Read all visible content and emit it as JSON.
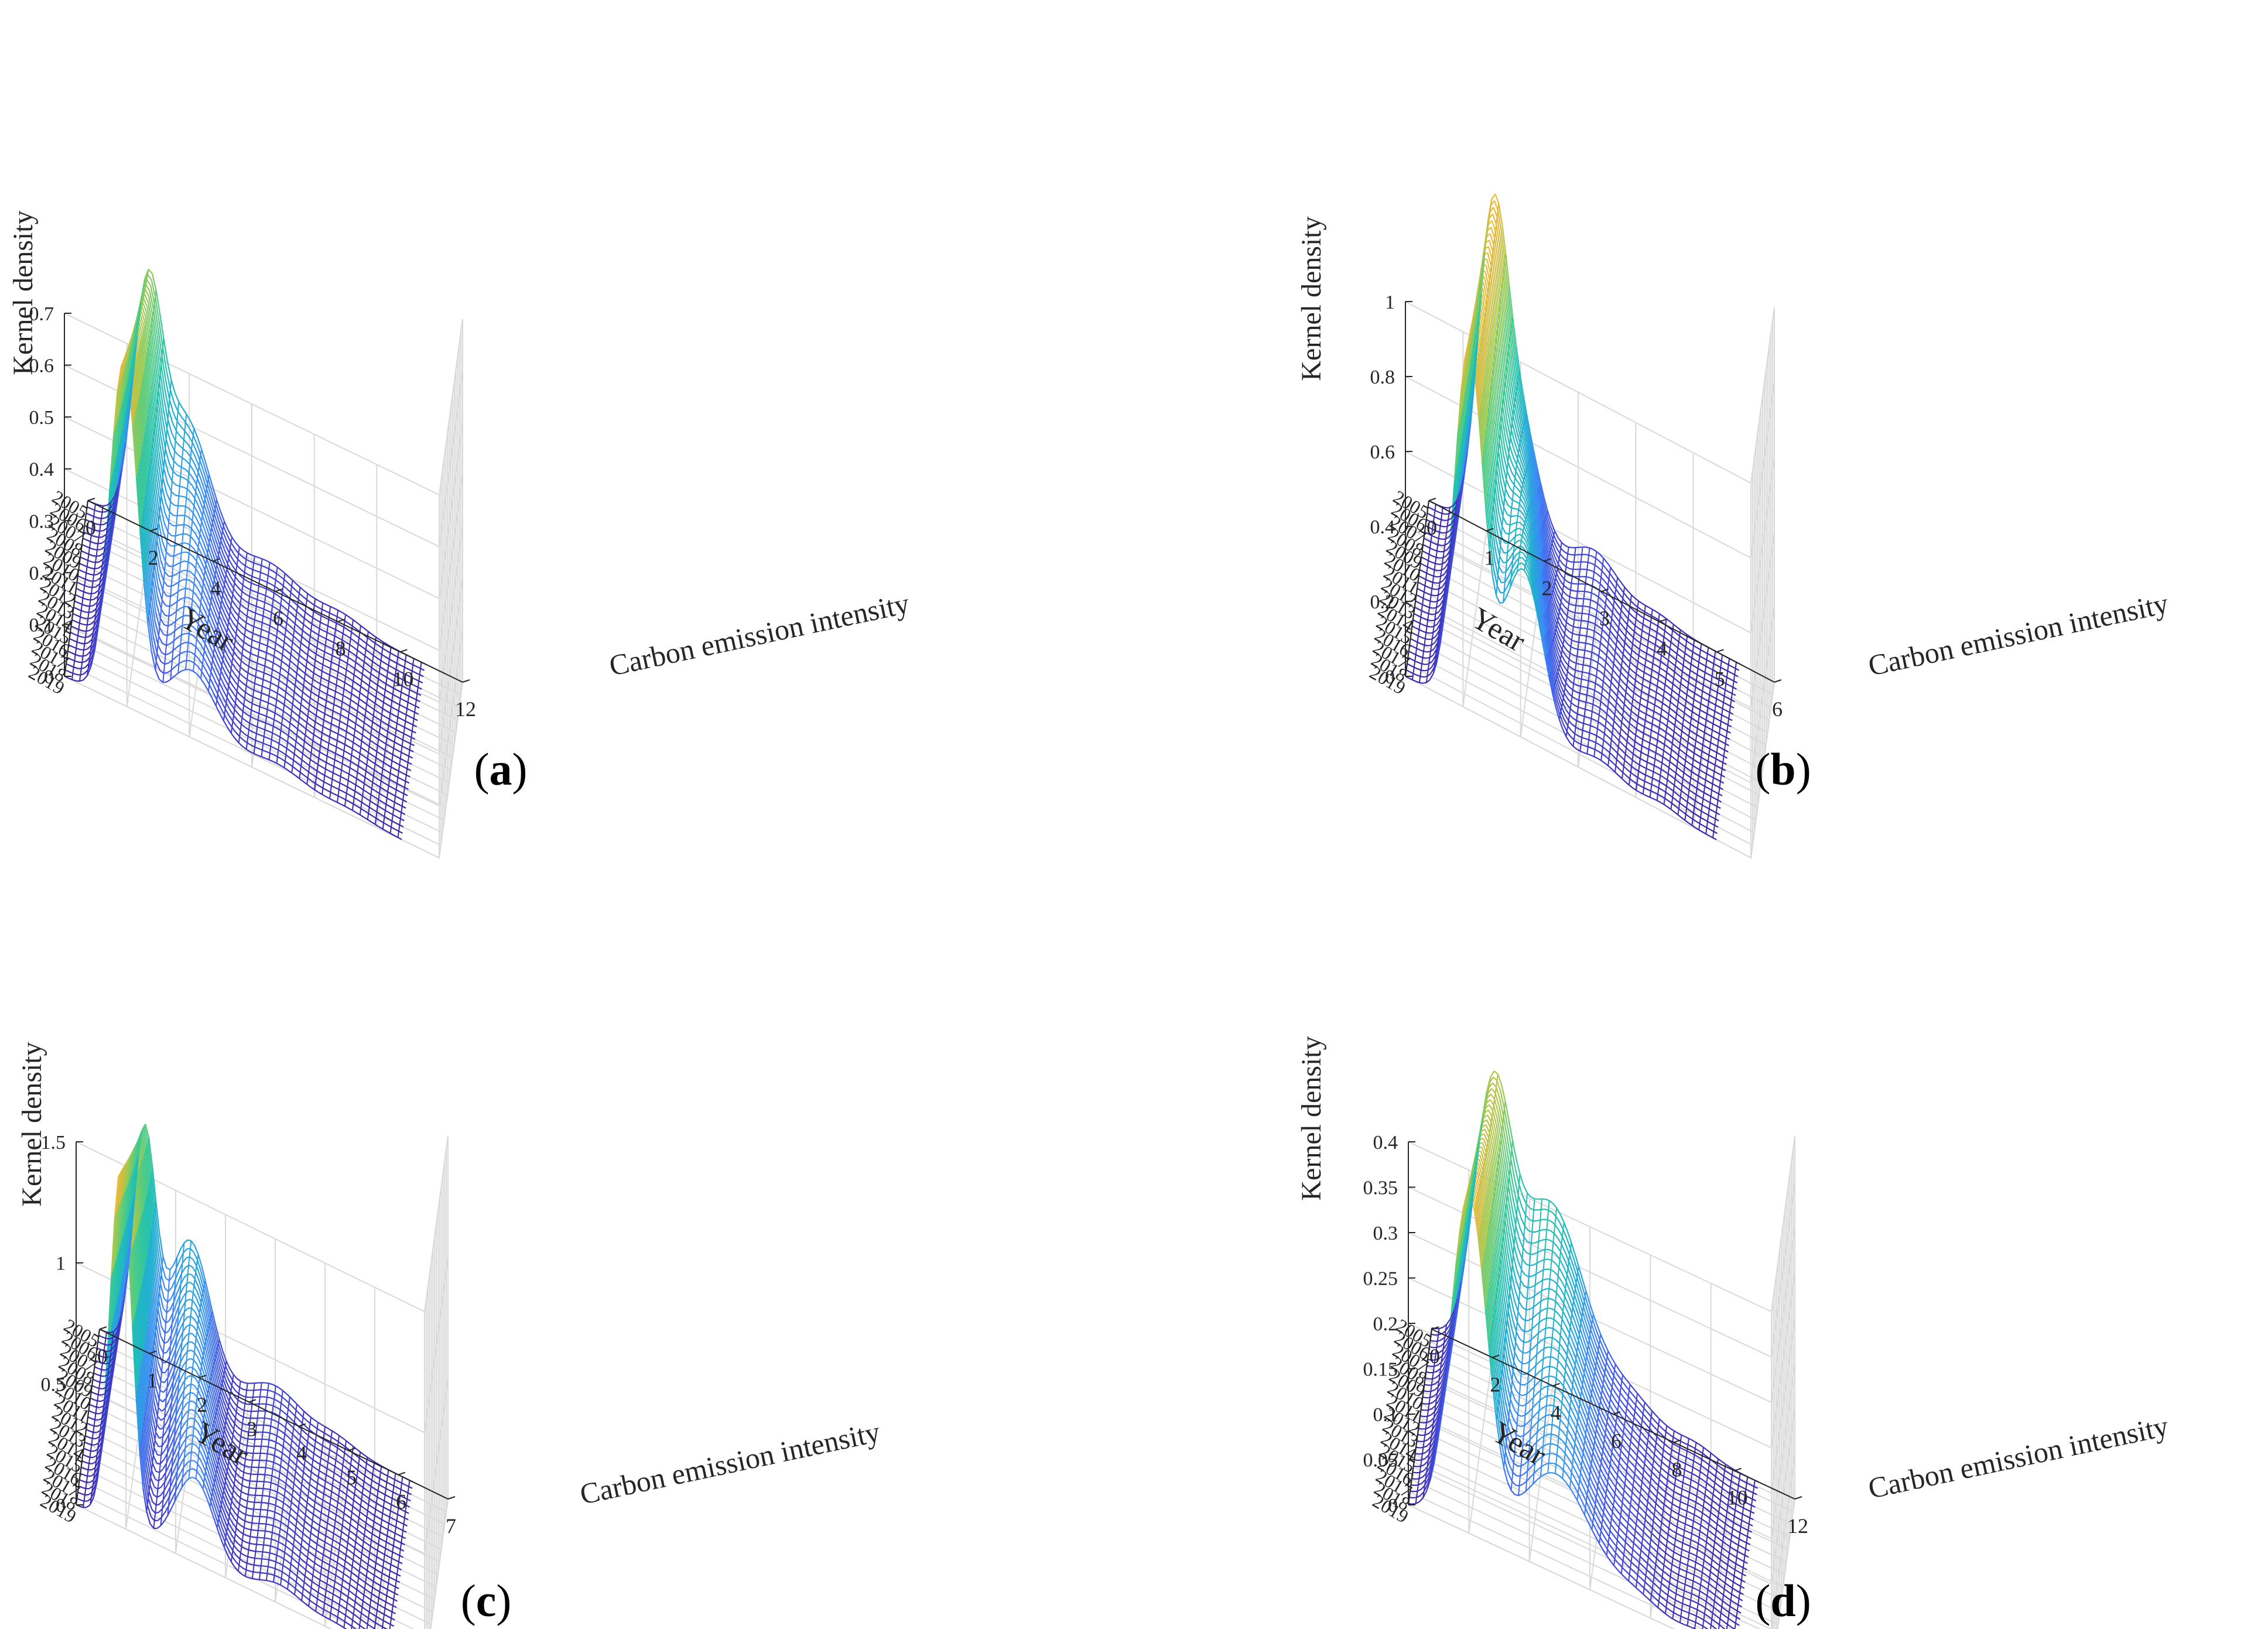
{
  "figure": {
    "colormap": [
      "#3e26a8",
      "#4254e6",
      "#3c8cf5",
      "#1fadd3",
      "#24c2ae",
      "#52cc83",
      "#a5c94d",
      "#e6b73d",
      "#fbe024"
    ]
  },
  "chart_data": [
    {
      "panel": "a",
      "caption_letter": "a",
      "type": "surface-wireframe",
      "xlabel": "Carbon emission intensity",
      "ylabel": "Year",
      "zlabel": "Kernel density",
      "xlim": [
        0,
        12
      ],
      "xticks": [
        "0",
        "2",
        "4",
        "6",
        "8",
        "10",
        "12"
      ],
      "years": [
        "2019",
        "2018",
        "2017",
        "2016",
        "2015",
        "2014",
        "2013",
        "2012",
        "2011",
        "2010",
        "2009",
        "2008",
        "2007",
        "2006",
        "2005"
      ],
      "zlim": [
        0,
        0.7
      ],
      "zticks": [
        "0",
        "0.1",
        "0.2",
        "0.3",
        "0.4",
        "0.5",
        "0.6",
        "0.7"
      ],
      "grid": true,
      "peaks": [
        {
          "x": 1.9,
          "w": 0.45,
          "h0": 0.42,
          "h1": 0.66
        },
        {
          "x": 3.6,
          "w": 0.8,
          "h0": 0.25,
          "h1": 0.13
        },
        {
          "x": 6.3,
          "w": 0.9,
          "h0": 0.05,
          "h1": 0.03
        },
        {
          "x": 8.6,
          "w": 0.7,
          "h0": 0.02,
          "h1": 0.01
        }
      ]
    },
    {
      "panel": "b",
      "caption_letter": "b",
      "type": "surface-wireframe",
      "xlabel": "Carbon emission intensity",
      "ylabel": "Year",
      "zlabel": "Kernel density",
      "xlim": [
        0,
        6
      ],
      "xticks": [
        "0",
        "1",
        "2",
        "3",
        "4",
        "5",
        "6"
      ],
      "years": [
        "2019",
        "2018",
        "2017",
        "2016",
        "2015",
        "2014",
        "2013",
        "2012",
        "2011",
        "2010",
        "2009",
        "2008",
        "2007",
        "2006",
        "2005"
      ],
      "zlim": [
        0,
        1
      ],
      "zticks": [
        "0",
        "0.2",
        "0.4",
        "0.6",
        "0.8",
        "1"
      ],
      "grid": true,
      "peaks": [
        {
          "x": 1.1,
          "w": 0.25,
          "h0": 0.75,
          "h1": 0.96
        },
        {
          "x": 1.8,
          "w": 0.35,
          "h0": 0.35,
          "h1": 0.45
        },
        {
          "x": 3.1,
          "w": 0.4,
          "h0": 0.1,
          "h1": 0.05
        },
        {
          "x": 4.2,
          "w": 0.3,
          "h0": 0.02,
          "h1": 0.02
        }
      ]
    },
    {
      "panel": "c",
      "caption_letter": "c",
      "type": "surface-wireframe",
      "xlabel": "Carbon emission intensity",
      "ylabel": "Year",
      "zlabel": "Kernel density",
      "xlim": [
        0,
        7
      ],
      "xticks": [
        "0",
        "1",
        "2",
        "3",
        "4",
        "5",
        "6",
        "7"
      ],
      "years": [
        "2019",
        "2018",
        "2017",
        "2016",
        "2015",
        "2014",
        "2013",
        "2012",
        "2011",
        "2010",
        "2009",
        "2008",
        "2007",
        "2006",
        "2005"
      ],
      "zlim": [
        0,
        1.5
      ],
      "zticks": [
        "0",
        "0.5",
        "1",
        "1.5"
      ],
      "grid": true,
      "peaks": [
        {
          "x": 0.9,
          "w": 0.22,
          "h0": 0.9,
          "h1": 1.48
        },
        {
          "x": 2.1,
          "w": 0.4,
          "h0": 0.55,
          "h1": 0.35
        },
        {
          "x": 3.8,
          "w": 0.5,
          "h0": 0.12,
          "h1": 0.08
        },
        {
          "x": 5.0,
          "w": 0.4,
          "h0": 0.04,
          "h1": 0.03
        }
      ]
    },
    {
      "panel": "d",
      "caption_letter": "d",
      "type": "surface-wireframe",
      "xlabel": "Carbon emission intensity",
      "ylabel": "Year",
      "zlabel": "Kernel density",
      "xlim": [
        0,
        12
      ],
      "xticks": [
        "0",
        "2",
        "4",
        "6",
        "8",
        "10",
        "12"
      ],
      "years": [
        "2019",
        "2018",
        "2017",
        "2016",
        "2015",
        "2014",
        "2013",
        "2012",
        "2011",
        "2010",
        "2009",
        "2008",
        "2007",
        "2006",
        "2005"
      ],
      "zlim": [
        0,
        0.4
      ],
      "zticks": [
        "0",
        "0.05",
        "0.1",
        "0.15",
        "0.2",
        "0.25",
        "0.3",
        "0.35",
        "0.4"
      ],
      "grid": true,
      "peaks": [
        {
          "x": 2.0,
          "w": 0.6,
          "h0": 0.27,
          "h1": 0.37
        },
        {
          "x": 4.4,
          "w": 1.1,
          "h0": 0.2,
          "h1": 0.11
        },
        {
          "x": 7.0,
          "w": 0.9,
          "h0": 0.03,
          "h1": 0.02
        },
        {
          "x": 9.2,
          "w": 0.6,
          "h0": 0.01,
          "h1": 0.01
        }
      ]
    }
  ]
}
